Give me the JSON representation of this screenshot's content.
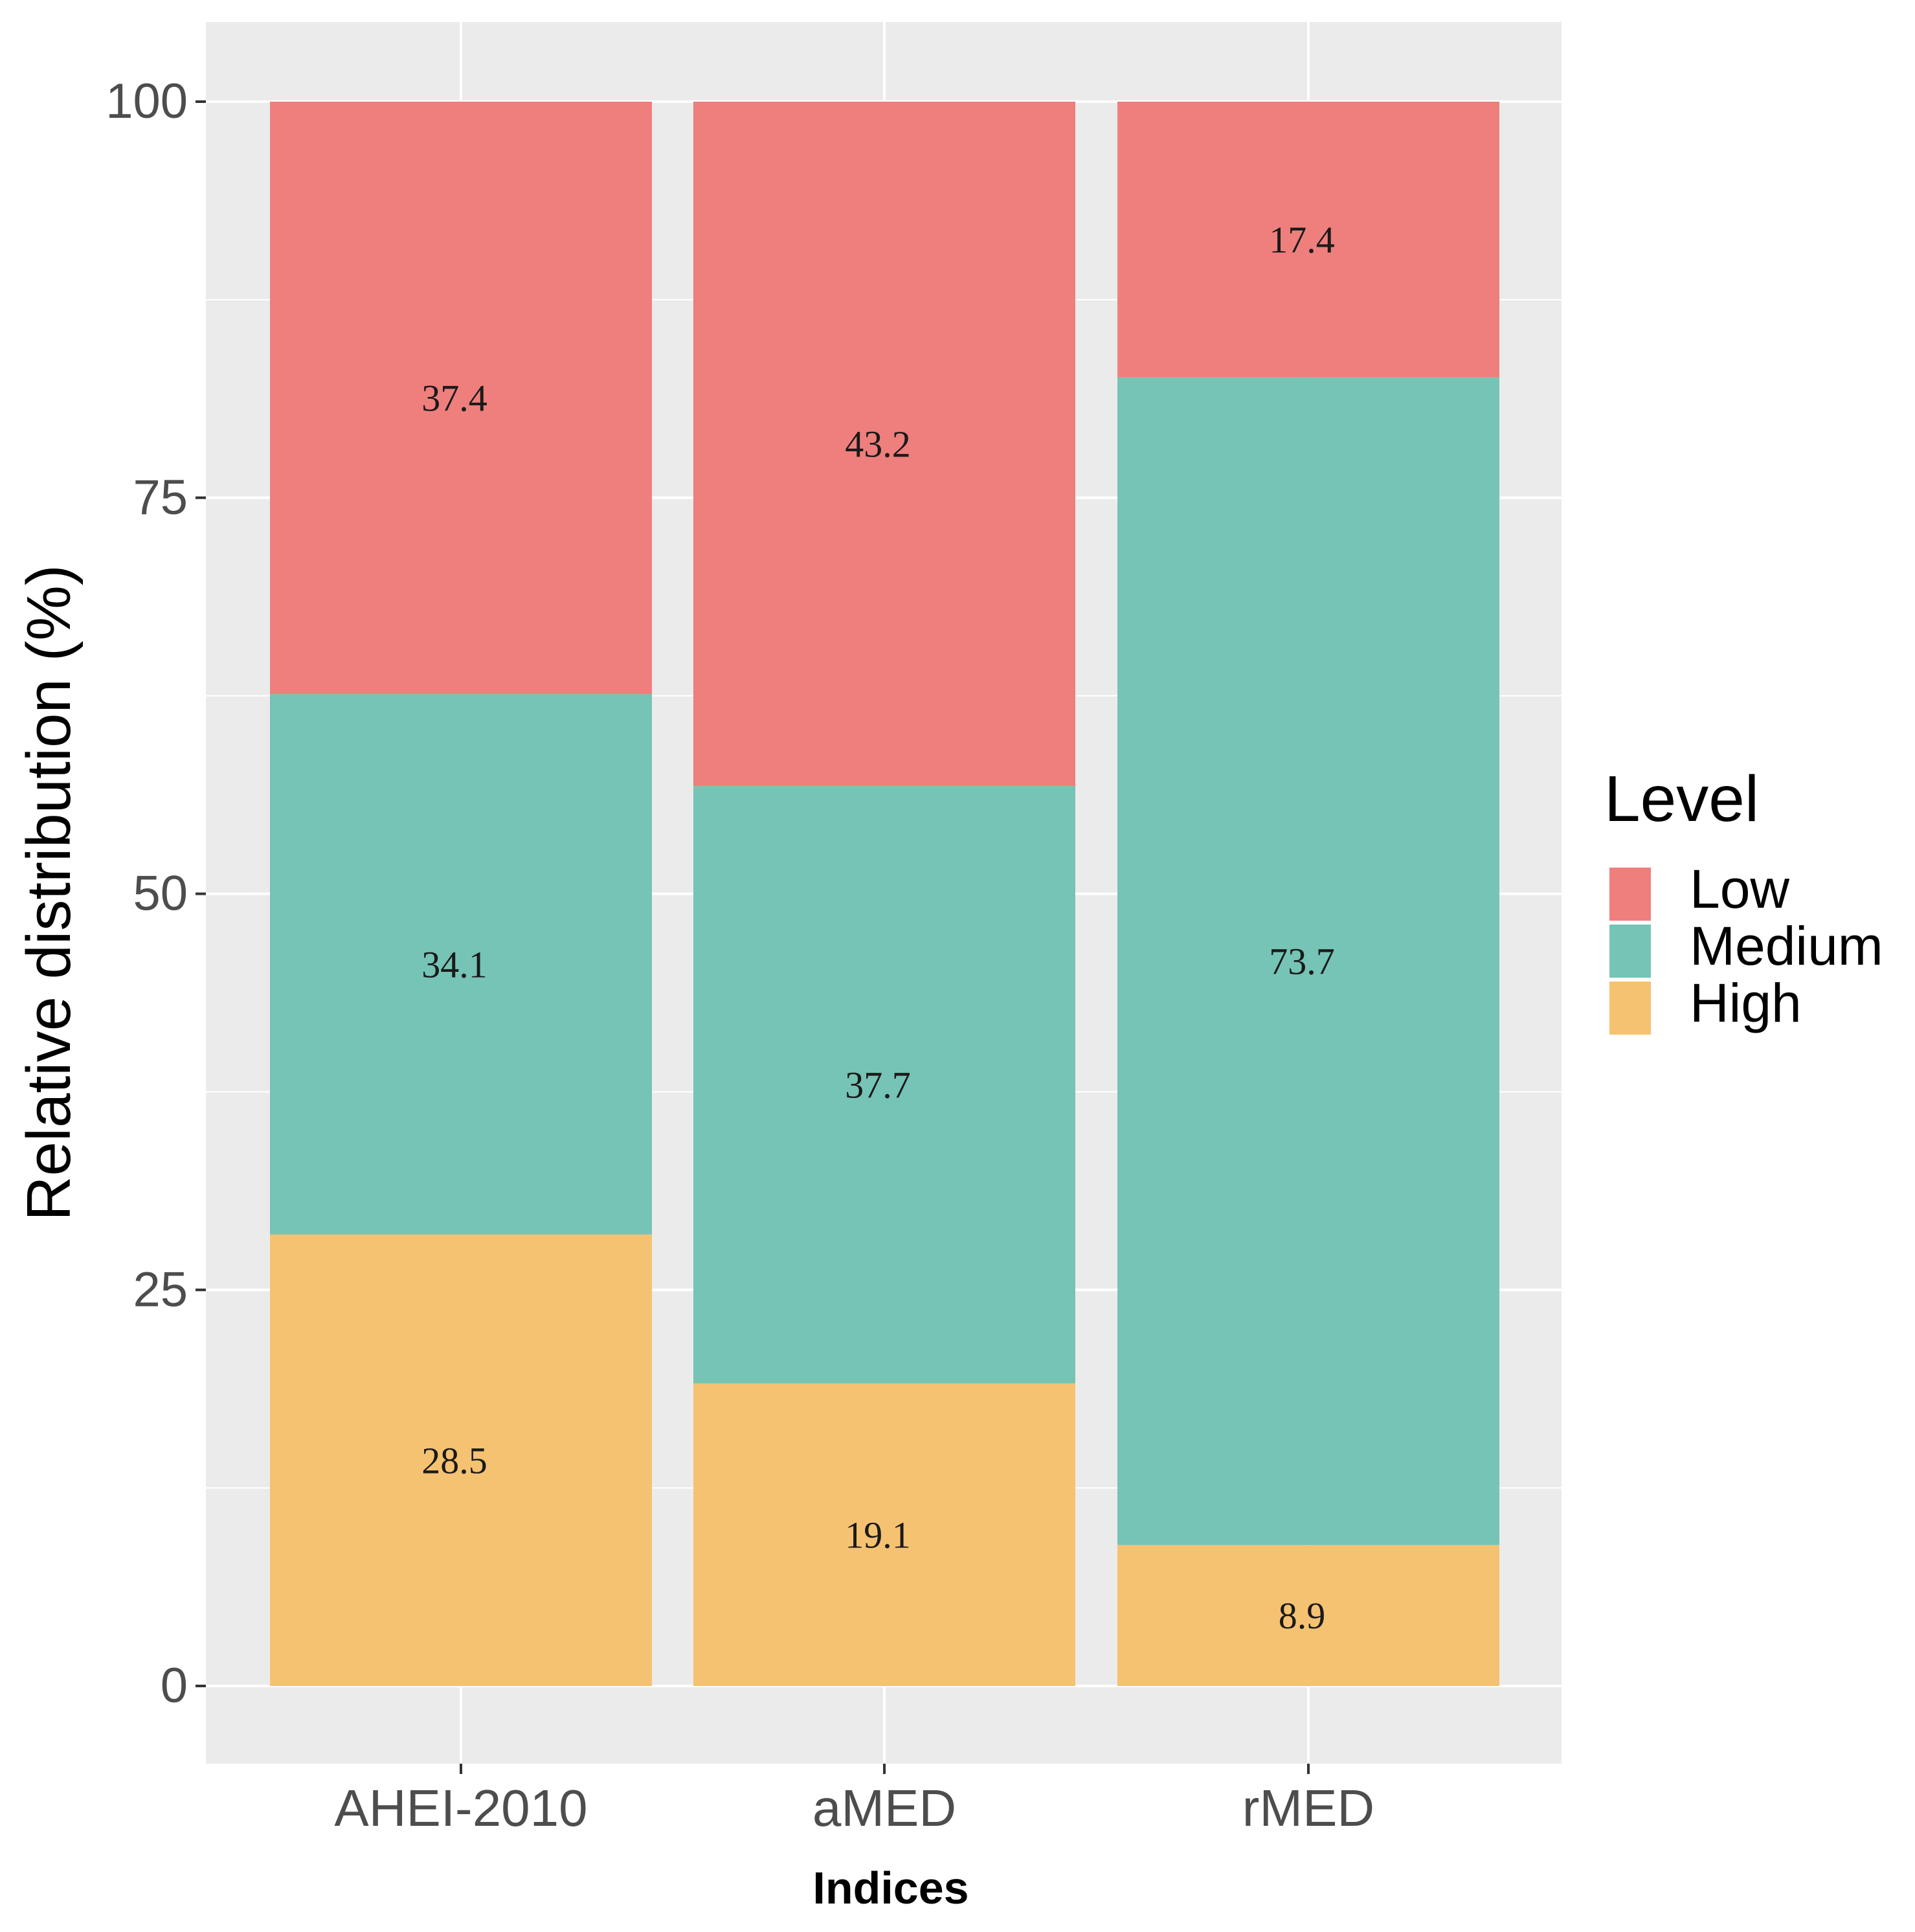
{
  "chart_data": {
    "type": "bar",
    "stacked": true,
    "categories": [
      "AHEI-2010",
      "aMED",
      "rMED"
    ],
    "series": [
      {
        "name": "High",
        "color": "#F5C272",
        "values": [
          28.5,
          19.1,
          8.9
        ]
      },
      {
        "name": "Medium",
        "color": "#75C4B5",
        "values": [
          34.1,
          37.7,
          73.7
        ]
      },
      {
        "name": "Low",
        "color": "#EE7F7D",
        "values": [
          37.4,
          43.2,
          17.4
        ]
      }
    ],
    "xlabel": "Indices",
    "ylabel": "Relative distribution (%)",
    "ylim": [
      0,
      100
    ],
    "yticks": [
      0,
      25,
      50,
      75,
      100
    ],
    "grid": true,
    "panel_background": "#EBEBEB",
    "legend": {
      "title": "Level",
      "position": "right",
      "entries": [
        "Low",
        "Medium",
        "High"
      ]
    }
  }
}
